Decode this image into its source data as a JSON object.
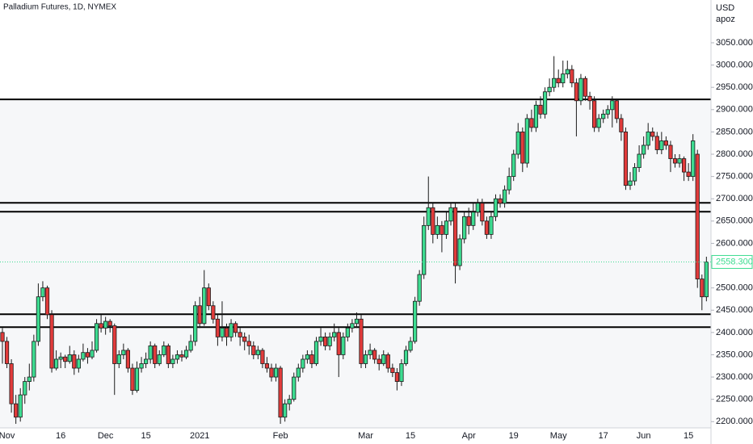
{
  "chart_data": {
    "type": "candlestick",
    "title": "Palladium Futures, 1D, NYMEX",
    "currency": "USD",
    "scale_label": "apoz",
    "up_color": "#3ddc91",
    "down_color": "#e23b3b",
    "line_color": "#000000",
    "zone_color": "#f6f7f9",
    "ylim": [
      2186,
      3146
    ],
    "yticks": [
      {
        "value": 2200,
        "label": "2200.0000"
      },
      {
        "value": 2250,
        "label": "2250.0000"
      },
      {
        "value": 2300,
        "label": "2300.0000"
      },
      {
        "value": 2350,
        "label": "2350.0000"
      },
      {
        "value": 2400,
        "label": "2400.0000"
      },
      {
        "value": 2450,
        "label": "2450.0000"
      },
      {
        "value": 2500,
        "label": "2500.0000"
      },
      {
        "value": 2550,
        "label": "2550.0000"
      },
      {
        "value": 2600,
        "label": "2600.0000"
      },
      {
        "value": 2650,
        "label": "2650.0000"
      },
      {
        "value": 2700,
        "label": "2700.0000"
      },
      {
        "value": 2750,
        "label": "2750.0000"
      },
      {
        "value": 2800,
        "label": "2800.0000"
      },
      {
        "value": 2850,
        "label": "2850.0000"
      },
      {
        "value": 2900,
        "label": "2900.0000"
      },
      {
        "value": 2950,
        "label": "2950.0000"
      },
      {
        "value": 3000,
        "label": "3000.0000"
      },
      {
        "value": 3050,
        "label": "3050.0000"
      }
    ],
    "hlines": [
      2923,
      2691,
      2671,
      2441,
      2412
    ],
    "last_price": {
      "value": 2558.3,
      "label": "2558.3000"
    },
    "categories": [
      null,
      "Nov",
      null,
      null,
      null,
      null,
      null,
      null,
      null,
      null,
      null,
      null,
      null,
      "16",
      null,
      null,
      null,
      null,
      null,
      null,
      null,
      null,
      null,
      "Dec",
      null,
      null,
      null,
      null,
      null,
      null,
      null,
      null,
      "15",
      null,
      null,
      null,
      null,
      null,
      null,
      null,
      null,
      null,
      null,
      null,
      "2021",
      null,
      null,
      null,
      null,
      null,
      null,
      null,
      null,
      null,
      null,
      null,
      null,
      null,
      null,
      null,
      null,
      null,
      "Feb",
      null,
      null,
      null,
      null,
      null,
      null,
      null,
      null,
      null,
      null,
      null,
      null,
      null,
      null,
      null,
      null,
      null,
      null,
      "Mar",
      null,
      null,
      null,
      null,
      null,
      null,
      null,
      null,
      null,
      "15",
      null,
      null,
      null,
      null,
      null,
      null,
      null,
      null,
      null,
      null,
      null,
      null,
      "Apr",
      null,
      null,
      null,
      null,
      null,
      null,
      null,
      null,
      null,
      "19",
      null,
      null,
      null,
      null,
      null,
      null,
      null,
      null,
      null,
      "May",
      null,
      null,
      null,
      null,
      null,
      null,
      null,
      null,
      null,
      "17",
      null,
      null,
      null,
      null,
      null,
      null,
      null,
      null,
      "Jun",
      null,
      null,
      null,
      null,
      null,
      null,
      null,
      null,
      null,
      "15",
      null,
      null,
      null,
      null
    ],
    "candles": [
      [
        2400,
        2410,
        2330,
        2380
      ],
      [
        2380,
        2390,
        2320,
        2330
      ],
      [
        2330,
        2340,
        2220,
        2240
      ],
      [
        2240,
        2260,
        2195,
        2210
      ],
      [
        2210,
        2275,
        2200,
        2260
      ],
      [
        2260,
        2300,
        2240,
        2290
      ],
      [
        2290,
        2330,
        2270,
        2300
      ],
      [
        2300,
        2395,
        2290,
        2380
      ],
      [
        2380,
        2510,
        2370,
        2480
      ],
      [
        2480,
        2515,
        2470,
        2500
      ],
      [
        2500,
        2505,
        2430,
        2440
      ],
      [
        2440,
        2450,
        2310,
        2320
      ],
      [
        2320,
        2360,
        2315,
        2340
      ],
      [
        2340,
        2355,
        2320,
        2345
      ],
      [
        2345,
        2350,
        2320,
        2335
      ],
      [
        2335,
        2370,
        2330,
        2350
      ],
      [
        2350,
        2360,
        2305,
        2320
      ],
      [
        2320,
        2350,
        2310,
        2340
      ],
      [
        2340,
        2375,
        2335,
        2355
      ],
      [
        2355,
        2365,
        2330,
        2345
      ],
      [
        2345,
        2380,
        2340,
        2360
      ],
      [
        2360,
        2430,
        2355,
        2420
      ],
      [
        2420,
        2440,
        2400,
        2410
      ],
      [
        2410,
        2435,
        2395,
        2425
      ],
      [
        2425,
        2430,
        2400,
        2415
      ],
      [
        2415,
        2420,
        2260,
        2330
      ],
      [
        2330,
        2360,
        2320,
        2350
      ],
      [
        2350,
        2375,
        2340,
        2360
      ],
      [
        2360,
        2365,
        2310,
        2320
      ],
      [
        2320,
        2330,
        2260,
        2270
      ],
      [
        2270,
        2335,
        2265,
        2320
      ],
      [
        2320,
        2345,
        2310,
        2330
      ],
      [
        2330,
        2355,
        2320,
        2340
      ],
      [
        2340,
        2380,
        2330,
        2370
      ],
      [
        2370,
        2375,
        2320,
        2330
      ],
      [
        2330,
        2360,
        2325,
        2350
      ],
      [
        2350,
        2380,
        2345,
        2370
      ],
      [
        2370,
        2375,
        2320,
        2330
      ],
      [
        2330,
        2350,
        2320,
        2340
      ],
      [
        2340,
        2360,
        2330,
        2350
      ],
      [
        2350,
        2360,
        2335,
        2345
      ],
      [
        2345,
        2370,
        2340,
        2360
      ],
      [
        2360,
        2395,
        2355,
        2380
      ],
      [
        2380,
        2470,
        2370,
        2460
      ],
      [
        2460,
        2480,
        2410,
        2420
      ],
      [
        2420,
        2540,
        2415,
        2500
      ],
      [
        2500,
        2510,
        2450,
        2460
      ],
      [
        2460,
        2470,
        2420,
        2430
      ],
      [
        2430,
        2440,
        2370,
        2390
      ],
      [
        2390,
        2470,
        2380,
        2410
      ],
      [
        2410,
        2420,
        2370,
        2390
      ],
      [
        2390,
        2430,
        2380,
        2420
      ],
      [
        2420,
        2425,
        2390,
        2400
      ],
      [
        2400,
        2410,
        2370,
        2390
      ],
      [
        2390,
        2400,
        2360,
        2380
      ],
      [
        2380,
        2395,
        2350,
        2370
      ],
      [
        2370,
        2380,
        2340,
        2350
      ],
      [
        2350,
        2370,
        2340,
        2360
      ],
      [
        2360,
        2365,
        2320,
        2330
      ],
      [
        2330,
        2345,
        2310,
        2320
      ],
      [
        2320,
        2330,
        2290,
        2300
      ],
      [
        2300,
        2330,
        2290,
        2320
      ],
      [
        2320,
        2325,
        2195,
        2210
      ],
      [
        2210,
        2250,
        2200,
        2240
      ],
      [
        2240,
        2260,
        2225,
        2250
      ],
      [
        2250,
        2310,
        2245,
        2300
      ],
      [
        2300,
        2330,
        2290,
        2320
      ],
      [
        2320,
        2350,
        2310,
        2340
      ],
      [
        2340,
        2360,
        2330,
        2350
      ],
      [
        2350,
        2360,
        2320,
        2330
      ],
      [
        2330,
        2390,
        2325,
        2380
      ],
      [
        2380,
        2410,
        2370,
        2390
      ],
      [
        2390,
        2400,
        2360,
        2370
      ],
      [
        2370,
        2400,
        2360,
        2390
      ],
      [
        2390,
        2420,
        2380,
        2400
      ],
      [
        2400,
        2410,
        2300,
        2350
      ],
      [
        2350,
        2400,
        2340,
        2390
      ],
      [
        2390,
        2420,
        2380,
        2410
      ],
      [
        2410,
        2430,
        2400,
        2420
      ],
      [
        2420,
        2445,
        2410,
        2430
      ],
      [
        2430,
        2440,
        2320,
        2330
      ],
      [
        2330,
        2360,
        2320,
        2350
      ],
      [
        2350,
        2375,
        2340,
        2360
      ],
      [
        2360,
        2365,
        2330,
        2340
      ],
      [
        2340,
        2350,
        2315,
        2330
      ],
      [
        2330,
        2360,
        2325,
        2350
      ],
      [
        2350,
        2355,
        2310,
        2320
      ],
      [
        2320,
        2330,
        2300,
        2310
      ],
      [
        2310,
        2320,
        2270,
        2290
      ],
      [
        2290,
        2340,
        2280,
        2330
      ],
      [
        2330,
        2370,
        2325,
        2360
      ],
      [
        2360,
        2390,
        2355,
        2380
      ],
      [
        2380,
        2480,
        2375,
        2470
      ],
      [
        2470,
        2540,
        2460,
        2530
      ],
      [
        2530,
        2660,
        2520,
        2640
      ],
      [
        2640,
        2750,
        2630,
        2680
      ],
      [
        2680,
        2690,
        2600,
        2620
      ],
      [
        2620,
        2660,
        2610,
        2640
      ],
      [
        2640,
        2650,
        2580,
        2620
      ],
      [
        2620,
        2670,
        2610,
        2650
      ],
      [
        2650,
        2690,
        2640,
        2680
      ],
      [
        2680,
        2690,
        2510,
        2550
      ],
      [
        2550,
        2620,
        2540,
        2610
      ],
      [
        2610,
        2670,
        2600,
        2660
      ],
      [
        2660,
        2680,
        2620,
        2640
      ],
      [
        2640,
        2690,
        2630,
        2670
      ],
      [
        2670,
        2700,
        2660,
        2690
      ],
      [
        2690,
        2700,
        2640,
        2650
      ],
      [
        2650,
        2660,
        2610,
        2620
      ],
      [
        2620,
        2670,
        2610,
        2660
      ],
      [
        2660,
        2710,
        2650,
        2700
      ],
      [
        2700,
        2710,
        2680,
        2690
      ],
      [
        2690,
        2730,
        2680,
        2720
      ],
      [
        2720,
        2770,
        2710,
        2750
      ],
      [
        2750,
        2810,
        2740,
        2800
      ],
      [
        2800,
        2870,
        2790,
        2850
      ],
      [
        2850,
        2860,
        2760,
        2780
      ],
      [
        2780,
        2890,
        2770,
        2880
      ],
      [
        2880,
        2900,
        2850,
        2860
      ],
      [
        2860,
        2920,
        2850,
        2910
      ],
      [
        2910,
        2930,
        2880,
        2890
      ],
      [
        2890,
        2950,
        2880,
        2940
      ],
      [
        2940,
        2970,
        2930,
        2950
      ],
      [
        2950,
        3020,
        2940,
        2970
      ],
      [
        2970,
        2990,
        2950,
        2960
      ],
      [
        2960,
        3010,
        2950,
        2980
      ],
      [
        2980,
        3010,
        2970,
        2990
      ],
      [
        2990,
        3000,
        2950,
        2960
      ],
      [
        2960,
        2970,
        2840,
        2920
      ],
      [
        2920,
        2980,
        2910,
        2970
      ],
      [
        2970,
        2975,
        2920,
        2930
      ],
      [
        2930,
        2940,
        2900,
        2920
      ],
      [
        2920,
        2930,
        2850,
        2860
      ],
      [
        2860,
        2890,
        2850,
        2880
      ],
      [
        2880,
        2900,
        2870,
        2890
      ],
      [
        2890,
        2910,
        2880,
        2900
      ],
      [
        2900,
        2930,
        2860,
        2920
      ],
      [
        2920,
        2925,
        2870,
        2880
      ],
      [
        2880,
        2890,
        2830,
        2850
      ],
      [
        2850,
        2860,
        2720,
        2730
      ],
      [
        2730,
        2760,
        2720,
        2740
      ],
      [
        2740,
        2780,
        2730,
        2770
      ],
      [
        2770,
        2820,
        2760,
        2800
      ],
      [
        2800,
        2840,
        2790,
        2820
      ],
      [
        2820,
        2870,
        2810,
        2850
      ],
      [
        2850,
        2860,
        2830,
        2840
      ],
      [
        2840,
        2850,
        2800,
        2810
      ],
      [
        2810,
        2850,
        2800,
        2830
      ],
      [
        2830,
        2840,
        2810,
        2820
      ],
      [
        2820,
        2830,
        2760,
        2790
      ],
      [
        2790,
        2800,
        2770,
        2780
      ],
      [
        2780,
        2800,
        2770,
        2790
      ],
      [
        2790,
        2795,
        2740,
        2760
      ],
      [
        2760,
        2780,
        2740,
        2750
      ],
      [
        2750,
        2845,
        2740,
        2830
      ],
      [
        2800,
        2810,
        2500,
        2520
      ],
      [
        2520,
        2530,
        2450,
        2480
      ],
      [
        2480,
        2570,
        2470,
        2558.3
      ]
    ]
  }
}
